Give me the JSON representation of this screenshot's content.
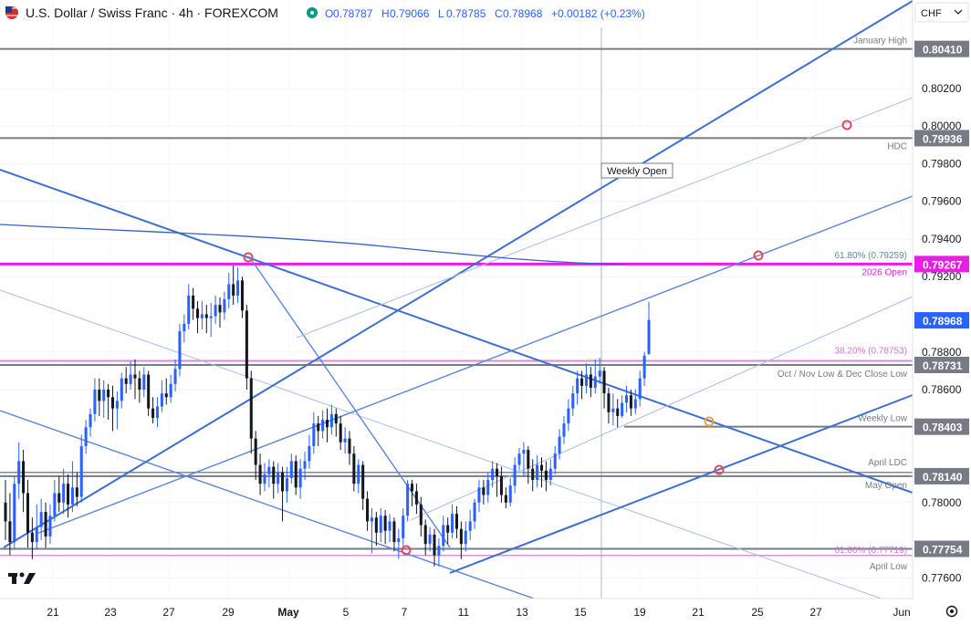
{
  "header": {
    "flag": "US/CH",
    "title": "U.S. Dollar / Swiss Franc · 4h · FOREXCOM",
    "ohlc": [
      {
        "k": "O",
        "v": "0.78787"
      },
      {
        "k": "H",
        "v": "0.79066"
      },
      {
        "k": "L",
        "v": "0.78785"
      },
      {
        "k": "C",
        "v": "0.78968"
      }
    ],
    "change": "+0.00182 (+0.23%)",
    "colors": {
      "text": "#131722",
      "muted": "#5b6270",
      "up": "#2962ff",
      "down": "#131722"
    }
  },
  "currency_button": {
    "label": "CHF",
    "icon": "chevron-down-icon"
  },
  "logo": "TradingView",
  "settings_icon": "gear-icon",
  "chart_data": {
    "type": "candlestick",
    "symbol": "USD/CHF",
    "interval": "4h",
    "ylim": [
      0.7749,
      0.8067
    ],
    "y_ticks": [
      "0.80200",
      "0.80000",
      "0.79800",
      "0.79600",
      "0.79400",
      "0.79200",
      "0.78800",
      "0.78600",
      "0.78000",
      "0.77600"
    ],
    "x_ticks": [
      "21",
      "23",
      "27",
      "29",
      "May",
      "5",
      "7",
      "11",
      "13",
      "15",
      "19",
      "21",
      "25",
      "27",
      "Jun"
    ],
    "current_price": "0.78968",
    "horizontal_levels": [
      {
        "price": 0.8041,
        "label": "January High",
        "tag": "0.80410",
        "color": "#787b86"
      },
      {
        "price": 0.79936,
        "label": "HDC",
        "tag": "0.79936",
        "color": "#787b86"
      },
      {
        "price": 0.79267,
        "label": "2026 Open",
        "tag": "0.79267",
        "color": "#e91ee5"
      },
      {
        "price": 0.79259,
        "label": "61.80% (0.79259)",
        "color": "#5b8ca0"
      },
      {
        "price": 0.78753,
        "label": "38.20% (0.78753)",
        "color": "#cc7ad0"
      },
      {
        "price": 0.78731,
        "label": "Oct / Nov Low & Dec Close Low",
        "tag": "0.78731",
        "color": "#787b86"
      },
      {
        "price": 0.78403,
        "label": "Weekly Low",
        "tag": "0.78403",
        "color": "#787b86"
      },
      {
        "price": 0.7816,
        "label": "April LDC",
        "color": "#787b86"
      },
      {
        "price": 0.7814,
        "label": "May Open",
        "tag": "0.78140",
        "color": "#787b86"
      },
      {
        "price": 0.77754,
        "tag": "0.77754",
        "color": "#787b86"
      },
      {
        "price": 0.77719,
        "label": "61.80% (0.77719)",
        "color": "#cc7ad0"
      },
      {
        "label": "April Low",
        "color": "#787b86"
      }
    ],
    "annotations": [
      "Weekly Open"
    ],
    "candles": [
      [
        0.78,
        0.779,
        0.7812,
        0.778
      ],
      [
        0.779,
        0.7779,
        0.7805,
        0.7772
      ],
      [
        0.7779,
        0.781,
        0.7814,
        0.7775
      ],
      [
        0.781,
        0.7822,
        0.7832,
        0.7802
      ],
      [
        0.7822,
        0.7805,
        0.7828,
        0.7795
      ],
      [
        0.7805,
        0.7784,
        0.7812,
        0.7776
      ],
      [
        0.7784,
        0.7779,
        0.7792,
        0.777
      ],
      [
        0.7779,
        0.7787,
        0.7799,
        0.7775
      ],
      [
        0.7787,
        0.7795,
        0.7802,
        0.778
      ],
      [
        0.7795,
        0.7782,
        0.78,
        0.7776
      ],
      [
        0.7782,
        0.7793,
        0.7799,
        0.7778
      ],
      [
        0.7793,
        0.7805,
        0.7812,
        0.779
      ],
      [
        0.7805,
        0.78,
        0.7814,
        0.7795
      ],
      [
        0.78,
        0.781,
        0.7818,
        0.7794
      ],
      [
        0.781,
        0.7799,
        0.7815,
        0.7792
      ],
      [
        0.7799,
        0.7808,
        0.7822,
        0.7795
      ],
      [
        0.7808,
        0.7803,
        0.7816,
        0.7798
      ],
      [
        0.7803,
        0.783,
        0.7836,
        0.78
      ],
      [
        0.783,
        0.784,
        0.7844,
        0.7826
      ],
      [
        0.784,
        0.7847,
        0.785,
        0.7835
      ],
      [
        0.7847,
        0.786,
        0.7866,
        0.7843
      ],
      [
        0.786,
        0.7854,
        0.7866,
        0.7846
      ],
      [
        0.7854,
        0.786,
        0.7865,
        0.7845
      ],
      [
        0.786,
        0.7856,
        0.7863,
        0.7844
      ],
      [
        0.7856,
        0.785,
        0.7862,
        0.7838
      ],
      [
        0.785,
        0.7854,
        0.7859,
        0.7839
      ],
      [
        0.7854,
        0.7866,
        0.7869,
        0.785
      ],
      [
        0.7866,
        0.7863,
        0.7872,
        0.7858
      ],
      [
        0.7863,
        0.7868,
        0.7875,
        0.786
      ],
      [
        0.7868,
        0.7866,
        0.7876,
        0.7855
      ],
      [
        0.7866,
        0.786,
        0.787,
        0.7853
      ],
      [
        0.786,
        0.7868,
        0.7872,
        0.7856
      ],
      [
        0.7868,
        0.785,
        0.787,
        0.7846
      ],
      [
        0.785,
        0.7845,
        0.7856,
        0.7842
      ],
      [
        0.7845,
        0.7851,
        0.7856,
        0.784
      ],
      [
        0.7851,
        0.7858,
        0.7865,
        0.7848
      ],
      [
        0.7858,
        0.7856,
        0.7866,
        0.7852
      ],
      [
        0.7856,
        0.7863,
        0.7868,
        0.7853
      ],
      [
        0.7863,
        0.7871,
        0.7876,
        0.7859
      ],
      [
        0.7871,
        0.7891,
        0.7895,
        0.7867
      ],
      [
        0.7891,
        0.7895,
        0.79,
        0.7885
      ],
      [
        0.7895,
        0.791,
        0.7916,
        0.7892
      ],
      [
        0.791,
        0.7903,
        0.7914,
        0.7897
      ],
      [
        0.7903,
        0.7898,
        0.7907,
        0.789
      ],
      [
        0.7898,
        0.79,
        0.7907,
        0.7892
      ],
      [
        0.79,
        0.7898,
        0.7905,
        0.789
      ],
      [
        0.7898,
        0.7899,
        0.7906,
        0.7888
      ],
      [
        0.7899,
        0.7905,
        0.791,
        0.7895
      ],
      [
        0.7905,
        0.7901,
        0.7909,
        0.7893
      ],
      [
        0.7901,
        0.7908,
        0.7912,
        0.7897
      ],
      [
        0.7908,
        0.7916,
        0.7922,
        0.7903
      ],
      [
        0.7916,
        0.791,
        0.7926,
        0.7905
      ],
      [
        0.791,
        0.7918,
        0.7925,
        0.7906
      ],
      [
        0.7918,
        0.7902,
        0.792,
        0.7898
      ],
      [
        0.7902,
        0.7866,
        0.7905,
        0.786
      ],
      [
        0.7866,
        0.7834,
        0.787,
        0.7826
      ],
      [
        0.7834,
        0.782,
        0.7838,
        0.7812
      ],
      [
        0.782,
        0.781,
        0.7826,
        0.7804
      ],
      [
        0.781,
        0.7815,
        0.7821,
        0.7806
      ],
      [
        0.7815,
        0.7819,
        0.7823,
        0.7808
      ],
      [
        0.7819,
        0.781,
        0.7822,
        0.7802
      ],
      [
        0.781,
        0.7816,
        0.7821,
        0.7805
      ],
      [
        0.7816,
        0.7806,
        0.7819,
        0.779
      ],
      [
        0.7806,
        0.7813,
        0.7819,
        0.78
      ],
      [
        0.7813,
        0.7822,
        0.7826,
        0.781
      ],
      [
        0.7822,
        0.7808,
        0.7825,
        0.7804
      ],
      [
        0.7808,
        0.7818,
        0.7823,
        0.7802
      ],
      [
        0.7818,
        0.7822,
        0.7827,
        0.7812
      ],
      [
        0.7822,
        0.783,
        0.7836,
        0.7818
      ],
      [
        0.783,
        0.7842,
        0.7848,
        0.7826
      ],
      [
        0.7842,
        0.7838,
        0.7846,
        0.783
      ],
      [
        0.7838,
        0.7844,
        0.7849,
        0.7834
      ],
      [
        0.7844,
        0.784,
        0.785,
        0.7832
      ],
      [
        0.784,
        0.7847,
        0.7852,
        0.7836
      ],
      [
        0.7847,
        0.7842,
        0.785,
        0.7835
      ],
      [
        0.7842,
        0.7832,
        0.7846,
        0.7828
      ],
      [
        0.7832,
        0.7834,
        0.784,
        0.7826
      ],
      [
        0.7834,
        0.7826,
        0.7838,
        0.782
      ],
      [
        0.7826,
        0.781,
        0.783,
        0.7806
      ],
      [
        0.781,
        0.782,
        0.7823,
        0.7805
      ],
      [
        0.782,
        0.7802,
        0.7822,
        0.7796
      ],
      [
        0.7802,
        0.779,
        0.7806,
        0.7785
      ],
      [
        0.779,
        0.7792,
        0.7797,
        0.7773
      ],
      [
        0.7792,
        0.7784,
        0.7795,
        0.7777
      ],
      [
        0.7784,
        0.7793,
        0.7797,
        0.7779
      ],
      [
        0.7793,
        0.7785,
        0.7796,
        0.7778
      ],
      [
        0.7785,
        0.779,
        0.7794,
        0.7779
      ],
      [
        0.779,
        0.7779,
        0.7792,
        0.7774
      ],
      [
        0.7779,
        0.7781,
        0.7786,
        0.777
      ],
      [
        0.7781,
        0.7793,
        0.7797,
        0.7777
      ],
      [
        0.7793,
        0.781,
        0.7812,
        0.779
      ],
      [
        0.781,
        0.7806,
        0.7812,
        0.7798
      ],
      [
        0.7806,
        0.7799,
        0.781,
        0.7794
      ],
      [
        0.7799,
        0.7788,
        0.7803,
        0.7782
      ],
      [
        0.7788,
        0.7778,
        0.7791,
        0.7772
      ],
      [
        0.7778,
        0.7783,
        0.7787,
        0.7774
      ],
      [
        0.7783,
        0.7772,
        0.7786,
        0.7766
      ],
      [
        0.7772,
        0.7777,
        0.7781,
        0.7766
      ],
      [
        0.7777,
        0.7788,
        0.7793,
        0.7774
      ],
      [
        0.7788,
        0.7784,
        0.7792,
        0.7778
      ],
      [
        0.7784,
        0.7794,
        0.7799,
        0.7781
      ],
      [
        0.7794,
        0.7786,
        0.7798,
        0.7781
      ],
      [
        0.7786,
        0.7778,
        0.779,
        0.777
      ],
      [
        0.7778,
        0.7785,
        0.779,
        0.7774
      ],
      [
        0.7785,
        0.779,
        0.7796,
        0.778
      ],
      [
        0.779,
        0.78,
        0.7802,
        0.7786
      ],
      [
        0.78,
        0.7808,
        0.7812,
        0.7795
      ],
      [
        0.7808,
        0.7804,
        0.7812,
        0.7799
      ],
      [
        0.7804,
        0.7812,
        0.7816,
        0.78
      ],
      [
        0.7812,
        0.7818,
        0.7822,
        0.7808
      ],
      [
        0.7818,
        0.7814,
        0.7821,
        0.7803
      ],
      [
        0.7814,
        0.7804,
        0.7819,
        0.78
      ],
      [
        0.7804,
        0.78,
        0.7808,
        0.7797
      ],
      [
        0.78,
        0.7809,
        0.7813,
        0.7798
      ],
      [
        0.7809,
        0.782,
        0.7824,
        0.7805
      ],
      [
        0.782,
        0.7826,
        0.7829,
        0.7817
      ],
      [
        0.7826,
        0.7828,
        0.7832,
        0.7814
      ],
      [
        0.7828,
        0.7818,
        0.783,
        0.781
      ],
      [
        0.7818,
        0.7812,
        0.7823,
        0.7806
      ],
      [
        0.7812,
        0.782,
        0.7825,
        0.7808
      ],
      [
        0.782,
        0.7817,
        0.7824,
        0.7808
      ],
      [
        0.7817,
        0.7812,
        0.7822,
        0.7806
      ],
      [
        0.7812,
        0.7818,
        0.7823,
        0.7809
      ],
      [
        0.7818,
        0.7826,
        0.783,
        0.7815
      ],
      [
        0.7826,
        0.7835,
        0.7839,
        0.7823
      ],
      [
        0.7835,
        0.7842,
        0.7846,
        0.7831
      ],
      [
        0.7842,
        0.785,
        0.7855,
        0.7838
      ],
      [
        0.785,
        0.7858,
        0.7862,
        0.7846
      ],
      [
        0.7858,
        0.7866,
        0.787,
        0.7852
      ],
      [
        0.7866,
        0.7862,
        0.787,
        0.7855
      ],
      [
        0.7862,
        0.7868,
        0.7874,
        0.7858
      ],
      [
        0.7868,
        0.7861,
        0.7872,
        0.7856
      ],
      [
        0.7861,
        0.7867,
        0.7876,
        0.7858
      ],
      [
        0.7867,
        0.787,
        0.7877,
        0.7863
      ],
      [
        0.787,
        0.7858,
        0.7872,
        0.785
      ],
      [
        0.7858,
        0.7848,
        0.7861,
        0.7842
      ],
      [
        0.7848,
        0.785,
        0.7858,
        0.7841
      ],
      [
        0.785,
        0.7846,
        0.7855,
        0.784
      ],
      [
        0.7846,
        0.7853,
        0.7857,
        0.7845
      ],
      [
        0.7853,
        0.7857,
        0.7862,
        0.7848
      ],
      [
        0.7857,
        0.785,
        0.786,
        0.7846
      ],
      [
        0.785,
        0.7855,
        0.786,
        0.7847
      ],
      [
        0.7855,
        0.7866,
        0.787,
        0.7851
      ],
      [
        0.7866,
        0.7878,
        0.788,
        0.7862
      ],
      [
        0.7879,
        0.7897,
        0.79066,
        0.78785
      ]
    ]
  }
}
